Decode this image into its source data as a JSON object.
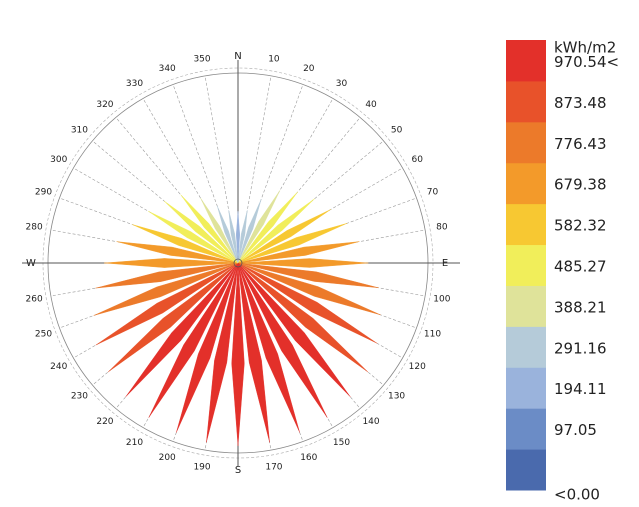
{
  "chart_data": {
    "type": "radiation-rose",
    "categories": [
      "N",
      "10",
      "20",
      "30",
      "40",
      "50",
      "60",
      "70",
      "80",
      "E",
      "100",
      "110",
      "120",
      "130",
      "140",
      "150",
      "160",
      "170",
      "S",
      "190",
      "200",
      "210",
      "220",
      "230",
      "240",
      "250",
      "260",
      "W",
      "280",
      "290",
      "300",
      "310",
      "320",
      "330",
      "340",
      "350"
    ],
    "values": [
      290,
      300,
      380,
      470,
      520,
      560,
      600,
      650,
      690,
      730,
      800,
      850,
      900,
      950,
      980,
      1000,
      1010,
      1020,
      1025,
      1020,
      1010,
      1000,
      980,
      950,
      920,
      860,
      810,
      750,
      690,
      630,
      580,
      540,
      500,
      420,
      340,
      300
    ],
    "legend": {
      "title": "kWh/m2",
      "colors": [
        "#4a6aad",
        "#6b8cc6",
        "#9ab3dc",
        "#b5cbd9",
        "#dfe39a",
        "#f1ee5a",
        "#f7c832",
        "#f39a2a",
        "#ec7a2a",
        "#e8522a",
        "#e3302a"
      ],
      "ticks": [
        {
          "value": 0,
          "label": "<0.00"
        },
        97.05,
        194.11,
        291.16,
        388.21,
        485.27,
        582.32,
        679.38,
        776.43,
        873.48,
        {
          "value": 970.54,
          "label": "970.54<"
        }
      ]
    }
  }
}
